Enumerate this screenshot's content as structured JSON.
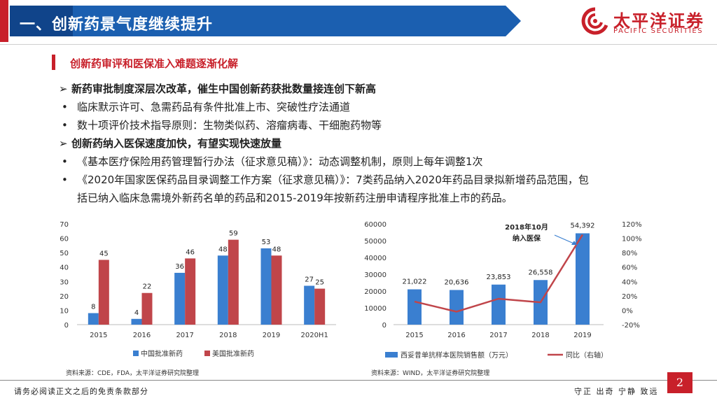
{
  "header": {
    "title": "一、创新药景气度继续提升",
    "logo_cn": "太平洋证券",
    "logo_en": "PACIFIC SECURITIES"
  },
  "subtitle": "创新药审评和医保准入难题逐渐化解",
  "bullets": [
    {
      "marker": "➢",
      "text": "新药审批制度深层次改革，催生中国创新药获批数量接连创下新高",
      "bold": true
    },
    {
      "marker": "•",
      "text": "临床默示许可、急需药品有条件批准上市、突破性疗法通道",
      "bold": false
    },
    {
      "marker": "•",
      "text": "数十项评价技术指导原则：生物类似药、溶瘤病毒、干细胞药物等",
      "bold": false
    },
    {
      "marker": "➢",
      "text": "创新药纳入医保速度加快，有望实现快速放量",
      "bold": true
    },
    {
      "marker": "•",
      "text": "《基本医疗保险用药管理暂行办法（征求意见稿）》：动态调整机制，原则上每年调整1次",
      "bold": false
    },
    {
      "marker": "•",
      "text": "《2020年国家医保药品目录调整工作方案（征求意见稿）》：7类药品纳入2020年药品目录拟新增药品范围，包",
      "bold": false
    },
    {
      "marker": "",
      "text": "括已纳入临床急需境外新药名单的药品和2015-2019年按新药注册申请程序批准上市的药品。",
      "bold": false
    }
  ],
  "colors": {
    "brand_red": "#c8202a",
    "brand_blue": "#1b5fb0",
    "china_bar": "#3a7fd0",
    "us_bar": "#c0454a",
    "sales_bar": "#3a7fd0",
    "yoy_line": "#c0454a"
  },
  "chart_data": [
    {
      "type": "bar",
      "categories": [
        "2015",
        "2016",
        "2017",
        "2018",
        "2019",
        "2020H1"
      ],
      "series": [
        {
          "name": "中国批准新药",
          "values": [
            8,
            4,
            36,
            48,
            53,
            27
          ]
        },
        {
          "name": "美国批准新药",
          "values": [
            45,
            22,
            46,
            59,
            48,
            25
          ]
        }
      ],
      "data_labels": [
        [
          "8",
          "4",
          "36",
          "48",
          "53",
          "27"
        ],
        [
          "45",
          "22",
          "46",
          "59",
          "48",
          "25"
        ]
      ],
      "ylim": [
        0,
        70
      ],
      "yticks": [
        "0",
        "10",
        "20",
        "30",
        "40",
        "50",
        "60",
        "70"
      ],
      "legend_position": "bottom",
      "grid": false,
      "source": "资料来源：CDE，FDA，太平洋证券研究院整理"
    },
    {
      "type": "bar+line",
      "categories": [
        "2015",
        "2016",
        "2017",
        "2018",
        "2019"
      ],
      "series": [
        {
          "name": "西妥昔单抗样本医院销售额（万元）",
          "axis": "left",
          "values": [
            21022,
            20636,
            23853,
            26558,
            54392
          ]
        },
        {
          "name": "同比（右轴）",
          "axis": "right",
          "values": [
            0.12,
            -0.02,
            0.16,
            0.11,
            1.05
          ]
        }
      ],
      "data_labels": [
        "21,022",
        "20,636",
        "23,853",
        "26,558",
        "54,392"
      ],
      "ylim_left": [
        0,
        60000
      ],
      "yticks_left": [
        "0",
        "10000",
        "20000",
        "30000",
        "40000",
        "50000",
        "60000"
      ],
      "ylim_right": [
        -0.2,
        1.2
      ],
      "yticks_right": [
        "-20%",
        "0%",
        "20%",
        "40%",
        "60%",
        "80%",
        "100%",
        "120%"
      ],
      "annotation": {
        "line1": "2018年10月",
        "line2": "纳入医保"
      },
      "legend_position": "bottom",
      "grid": false,
      "source": "资料来源：WIND，太平洋证券研究院整理"
    }
  ],
  "footer": {
    "disclaimer": "请务必阅读正文之后的免责条款部分",
    "motto": "守正  出奇  宁静  致远",
    "page": "2"
  }
}
